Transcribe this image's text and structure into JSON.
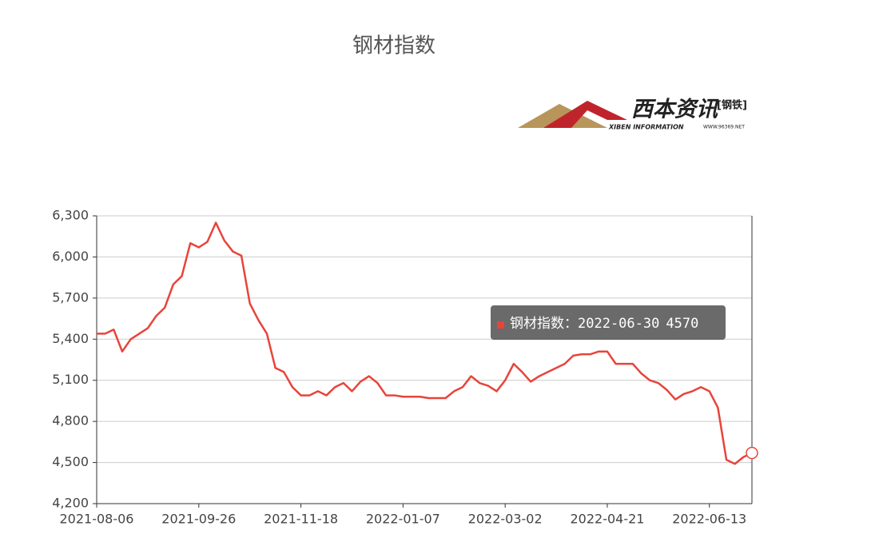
{
  "chart_data": {
    "type": "line",
    "title": "钢材指数",
    "categories": [
      "2021-08-06",
      null,
      null,
      null,
      null,
      null,
      null,
      null,
      null,
      null,
      null,
      null,
      "2021-09-26",
      null,
      null,
      null,
      null,
      null,
      null,
      null,
      null,
      null,
      null,
      null,
      "2021-11-18",
      null,
      null,
      null,
      null,
      null,
      null,
      null,
      null,
      null,
      null,
      null,
      "2022-01-07",
      null,
      null,
      null,
      null,
      null,
      null,
      null,
      null,
      null,
      null,
      null,
      "2022-03-02",
      null,
      null,
      null,
      null,
      null,
      null,
      null,
      null,
      null,
      null,
      null,
      "2022-04-21",
      null,
      null,
      null,
      null,
      null,
      null,
      null,
      null,
      null,
      null,
      null,
      "2022-06-13",
      null,
      null,
      null,
      null,
      "2022-06-30"
    ],
    "series": [
      {
        "name": "钢材指数",
        "color": "#e8443a",
        "values": [
          5440,
          5440,
          5470,
          5310,
          5400,
          5440,
          5480,
          5570,
          5630,
          5800,
          5860,
          6100,
          6070,
          6110,
          6250,
          6120,
          6040,
          6010,
          5660,
          5540,
          5440,
          5190,
          5160,
          5050,
          4990,
          4990,
          5020,
          4990,
          5050,
          5080,
          5020,
          5090,
          5130,
          5080,
          4990,
          4990,
          4980,
          4980,
          4980,
          4970,
          4970,
          4970,
          5020,
          5050,
          5130,
          5080,
          5060,
          5020,
          5100,
          5220,
          5160,
          5090,
          5130,
          5160,
          5190,
          5220,
          5280,
          5290,
          5290,
          5310,
          5310,
          5220,
          5220,
          5220,
          5150,
          5100,
          5080,
          5030,
          4960,
          5000,
          5020,
          5050,
          5020,
          4900,
          4520,
          4490,
          4540,
          4570
        ]
      }
    ],
    "ylim": [
      4200,
      6300
    ],
    "yticks": [
      {
        "value": 4200,
        "label": "4,200"
      },
      {
        "value": 4500,
        "label": "4,500"
      },
      {
        "value": 4800,
        "label": "4,800"
      },
      {
        "value": 5100,
        "label": "5,100"
      },
      {
        "value": 5400,
        "label": "5,400"
      },
      {
        "value": 5700,
        "label": "5,700"
      },
      {
        "value": 6000,
        "label": "6,000"
      },
      {
        "value": 6300,
        "label": "6,300"
      }
    ],
    "grid": true,
    "tooltip_separator": "："
  },
  "logo": {
    "name": "西本资讯",
    "tag": "[钢铁]",
    "subtitle": "XIBEN INFORMATION",
    "url": "WWW.96369.NET"
  }
}
